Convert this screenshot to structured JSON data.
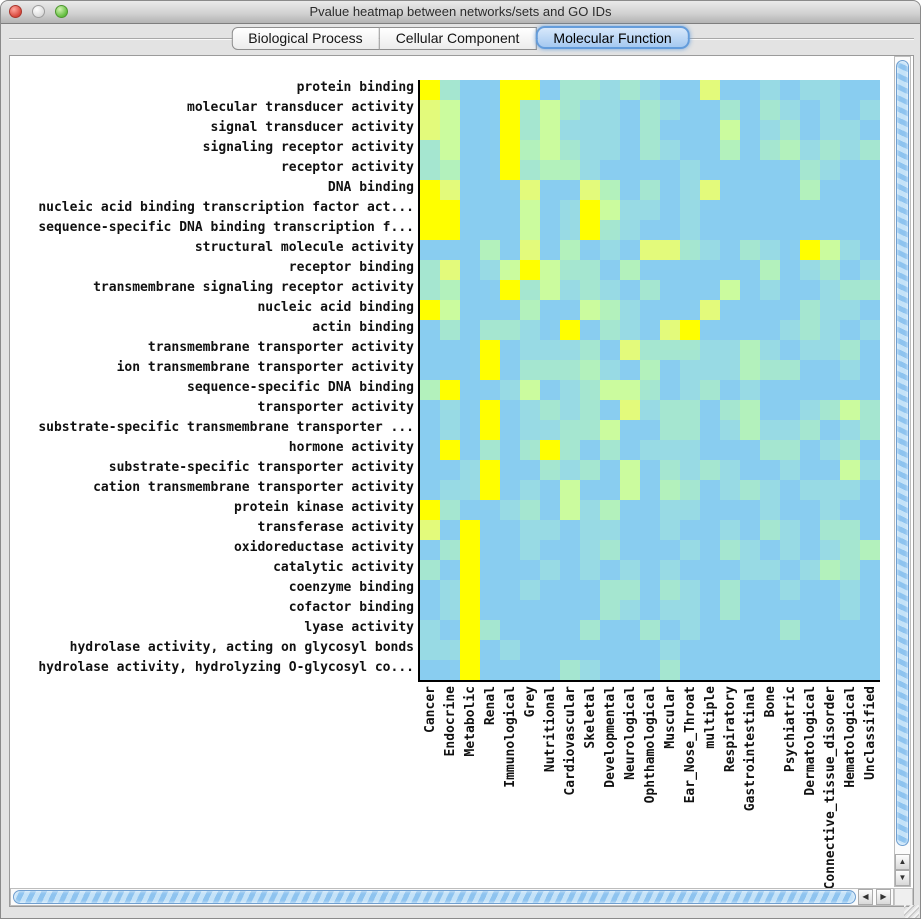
{
  "titlebar": {
    "title": "Pvalue heatmap between networks/sets and GO IDs"
  },
  "tabs": [
    {
      "label": "Biological Process",
      "selected": false
    },
    {
      "label": "Cellular Component",
      "selected": false
    },
    {
      "label": "Molecular Function",
      "selected": true
    }
  ],
  "icons": {
    "scroll_up": "▲",
    "scroll_down": "▼",
    "scroll_left": "◀",
    "scroll_right": "▶"
  },
  "chart_data": {
    "type": "heatmap",
    "title": "Pvalue heatmap between networks/sets and GO IDs",
    "selected_ontology": "Molecular Function",
    "rows": [
      "protein binding",
      "molecular transducer activity",
      "signal transducer activity",
      "signaling receptor activity",
      "receptor activity",
      "DNA binding",
      "nucleic acid binding transcription factor act...",
      "sequence-specific DNA binding transcription f...",
      "structural molecule activity",
      "receptor binding",
      "transmembrane signaling receptor activity",
      "nucleic acid binding",
      "actin binding",
      "transmembrane transporter activity",
      "ion transmembrane transporter activity",
      "sequence-specific DNA binding",
      "transporter activity",
      "substrate-specific transmembrane transporter ...",
      "hormone activity",
      "substrate-specific transporter activity",
      "cation transmembrane transporter activity",
      "protein kinase activity",
      "transferase activity",
      "oxidoreductase activity",
      "catalytic activity",
      "coenzyme binding",
      "cofactor binding",
      "lyase activity",
      "hydrolase activity, acting on glycosyl bonds",
      "hydrolase activity, hydrolyzing O-glycosyl co..."
    ],
    "columns": [
      "Cancer",
      "Endocrine",
      "Metabolic",
      "Renal",
      "Immunological",
      "Grey",
      "Nutritional",
      "Cardiovascular",
      "Skeletal",
      "Developmental",
      "Neurological",
      "Ophthamological",
      "Muscular",
      "Ear_Nose_Throat",
      "multiple",
      "Respiratory",
      "Gastrointestinal",
      "Bone",
      "Psychiatric",
      "Dermatological",
      "Connective_tissue_disorder",
      "Hematological",
      "Unclassified"
    ],
    "palette": [
      "#89CDF0",
      "#98DAE4",
      "#A5E6D0",
      "#B3F1BC",
      "#CBFB9E",
      "#E3FA7B",
      "#FFFF00"
    ],
    "value_scale": "0 = high p-value (blue, not significant) ... 6 = low p-value (bright yellow, most significant)",
    "grid": [
      "62006602212100500101100",
      "54006242110210020210101",
      "54006241110200040120110",
      "24006342110210030231212",
      "23006233100001000002100",
      "65000500530201500003000",
      "66000401641101000000000",
      "66000401621001000000000",
      "00030503010552102106410",
      "25014642203000000301201",
      "23006241210200040100122",
      "64000300431000500002110",
      "02022106021056000012101",
      "00060111205222113101120",
      "00060222310301113220010",
      "36001401244201201000000",
      "01060121205122023001242",
      "01060112240022013112012",
      "06020262020111000220120",
      "00160021204021210010041",
      "01160104004032012101110",
      "62001204130011000100100",
      "50600110110010010210220",
      "02600100120001021010123",
      "20600010101010001101320",
      "01600100022021020010010",
      "01600000021011020000010",
      "10620000200201000020000",
      "11601000000010000000000",
      "00600002100020000000000"
    ]
  }
}
